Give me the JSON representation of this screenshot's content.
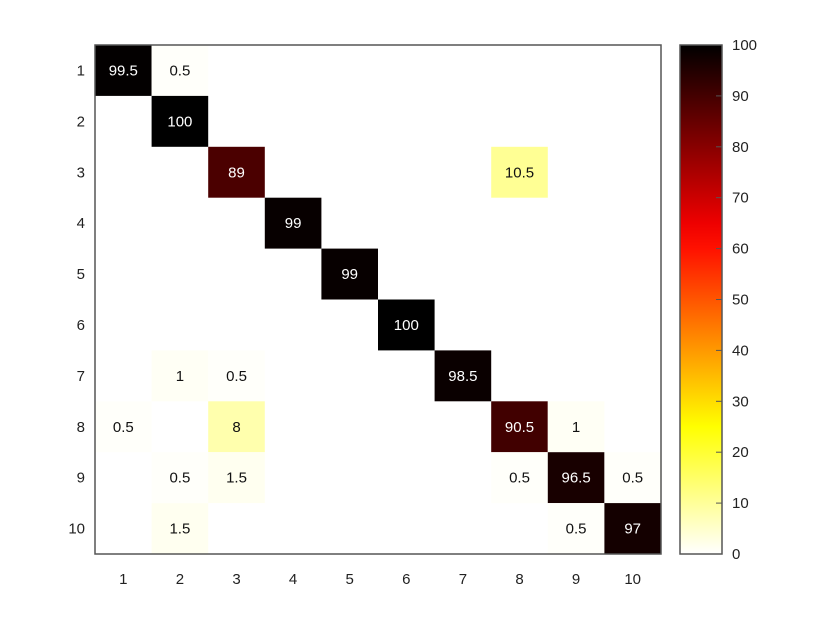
{
  "chart_data": {
    "type": "heatmap",
    "title": "",
    "xlabel": "",
    "ylabel": "",
    "x_categories": [
      "1",
      "2",
      "3",
      "4",
      "5",
      "6",
      "7",
      "8",
      "9",
      "10"
    ],
    "y_categories": [
      "1",
      "2",
      "3",
      "4",
      "5",
      "6",
      "7",
      "8",
      "9",
      "10"
    ],
    "cells": [
      {
        "row": 0,
        "col": 0,
        "value": 99.5,
        "label": "99.5"
      },
      {
        "row": 0,
        "col": 1,
        "value": 0.5,
        "label": "0.5"
      },
      {
        "row": 1,
        "col": 1,
        "value": 100,
        "label": "100"
      },
      {
        "row": 2,
        "col": 2,
        "value": 89,
        "label": "89"
      },
      {
        "row": 2,
        "col": 7,
        "value": 10.5,
        "label": "10.5"
      },
      {
        "row": 3,
        "col": 3,
        "value": 99,
        "label": "99"
      },
      {
        "row": 4,
        "col": 4,
        "value": 99,
        "label": "99"
      },
      {
        "row": 5,
        "col": 5,
        "value": 100,
        "label": "100"
      },
      {
        "row": 6,
        "col": 1,
        "value": 1,
        "label": "1"
      },
      {
        "row": 6,
        "col": 2,
        "value": 0.5,
        "label": "0.5"
      },
      {
        "row": 6,
        "col": 6,
        "value": 98.5,
        "label": "98.5"
      },
      {
        "row": 7,
        "col": 0,
        "value": 0.5,
        "label": "0.5"
      },
      {
        "row": 7,
        "col": 2,
        "value": 8,
        "label": "8"
      },
      {
        "row": 7,
        "col": 7,
        "value": 90.5,
        "label": "90.5"
      },
      {
        "row": 7,
        "col": 8,
        "value": 1,
        "label": "1"
      },
      {
        "row": 8,
        "col": 1,
        "value": 0.5,
        "label": "0.5"
      },
      {
        "row": 8,
        "col": 2,
        "value": 1.5,
        "label": "1.5"
      },
      {
        "row": 8,
        "col": 7,
        "value": 0.5,
        "label": "0.5"
      },
      {
        "row": 8,
        "col": 8,
        "value": 96.5,
        "label": "96.5"
      },
      {
        "row": 8,
        "col": 9,
        "value": 0.5,
        "label": "0.5"
      },
      {
        "row": 9,
        "col": 1,
        "value": 1.5,
        "label": "1.5"
      },
      {
        "row": 9,
        "col": 8,
        "value": 0.5,
        "label": "0.5"
      },
      {
        "row": 9,
        "col": 9,
        "value": 97,
        "label": "97"
      }
    ],
    "colorbar": {
      "colormap": "hot (reversed)",
      "range": [
        0,
        100
      ],
      "tick_labels": [
        "0",
        "10",
        "20",
        "30",
        "40",
        "50",
        "60",
        "70",
        "80",
        "90",
        "100"
      ]
    },
    "grid": false,
    "legend_placement": "right"
  }
}
